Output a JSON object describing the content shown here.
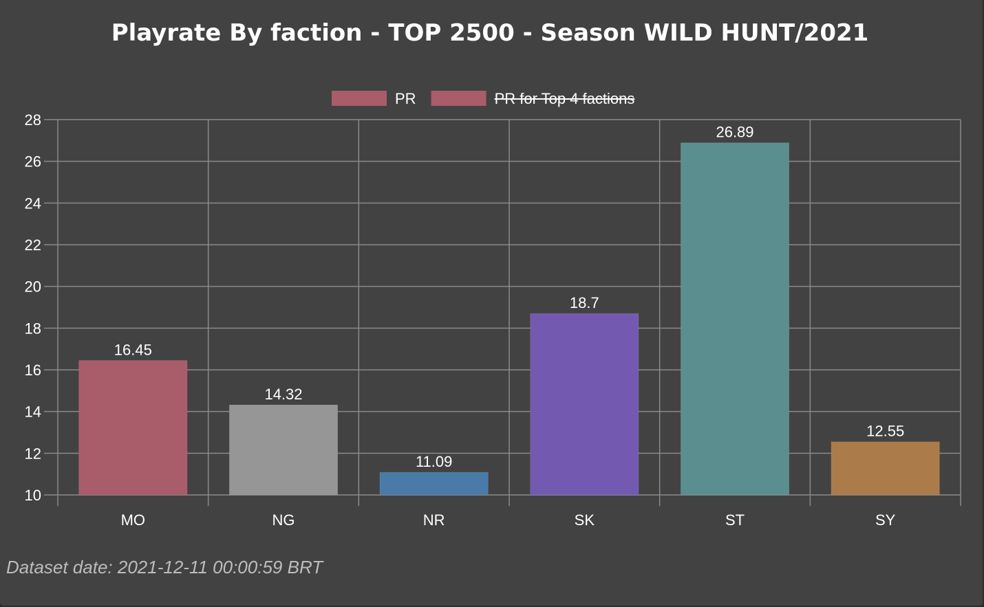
{
  "chart_data": {
    "type": "bar",
    "title": "Playrate By faction - TOP 2500 - Season WILD HUNT/2021",
    "categories": [
      "MO",
      "NG",
      "NR",
      "SK",
      "ST",
      "SY"
    ],
    "series": [
      {
        "name": "PR",
        "values": [
          16.45,
          14.32,
          11.09,
          18.7,
          26.89,
          12.55
        ],
        "colors": [
          "#a95c6a",
          "#969696",
          "#4a7ba8",
          "#735ab0",
          "#5b8f8f",
          "#ab7b4a"
        ],
        "data_labels": [
          "16.45",
          "14.32",
          "11.09",
          "18.7",
          "26.89",
          "12.55"
        ]
      }
    ],
    "legend": [
      {
        "label": "PR",
        "color": "#a95c6a",
        "hidden": false
      },
      {
        "label": "PR for Top 4 factions",
        "color": "#a95c6a",
        "hidden": true
      }
    ],
    "legend_position": "top",
    "ylim": [
      10,
      28
    ],
    "yticks": [
      "10",
      "12",
      "14",
      "16",
      "18",
      "20",
      "22",
      "24",
      "26",
      "28"
    ],
    "grid": true,
    "xlabel": "",
    "ylabel": ""
  },
  "footer": {
    "dataset_date": "Dataset date: 2021-12-11 00:00:59 BRT"
  },
  "colors": {
    "background": "#424242",
    "grid": "#8a8a8a",
    "text": "#ffffff"
  }
}
